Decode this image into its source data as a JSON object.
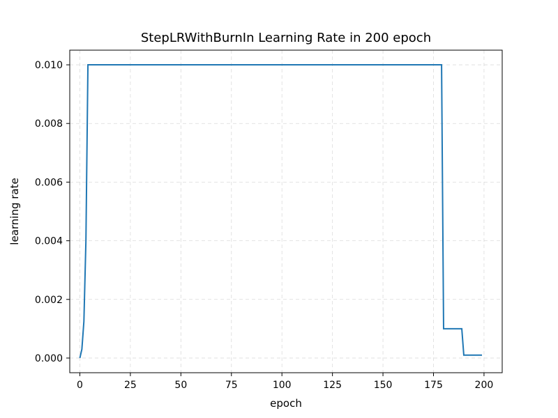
{
  "chart_data": {
    "type": "line",
    "title": "StepLRWithBurnIn Learning Rate in 200 epoch",
    "xlabel": "epoch",
    "ylabel": "learning rate",
    "xlim": [
      -5,
      209
    ],
    "ylim": [
      -0.0005,
      0.0105
    ],
    "xticks": [
      0,
      25,
      50,
      75,
      100,
      125,
      150,
      175,
      200
    ],
    "xtick_labels": [
      "0",
      "25",
      "50",
      "75",
      "100",
      "125",
      "150",
      "175",
      "200"
    ],
    "yticks": [
      0.0,
      0.002,
      0.004,
      0.006,
      0.008,
      0.01
    ],
    "ytick_labels": [
      "0.000",
      "0.002",
      "0.004",
      "0.006",
      "0.008",
      "0.010"
    ],
    "grid": true,
    "line_color": "#1f77b4",
    "series": [
      {
        "x": [
          0,
          1,
          2,
          3,
          4,
          179,
          180,
          189,
          190,
          199
        ],
        "y": [
          0.0,
          0.0003,
          0.00125,
          0.004,
          0.01,
          0.01,
          0.001,
          0.001,
          0.0001,
          0.0001
        ]
      }
    ]
  }
}
